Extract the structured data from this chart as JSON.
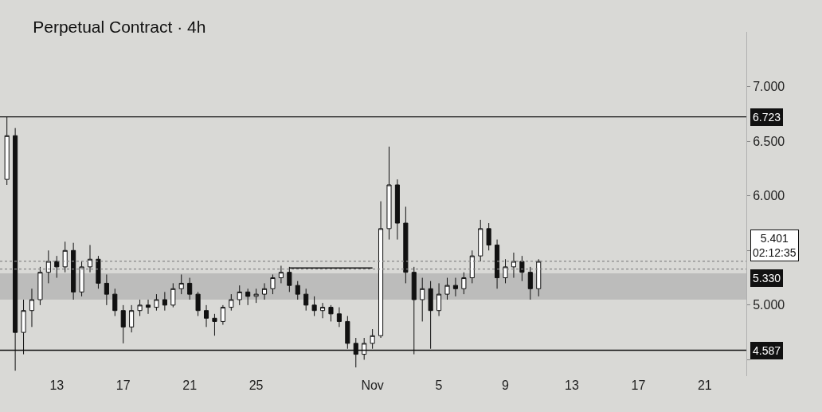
{
  "chart_data": {
    "type": "candlestick",
    "title": "Perpetual Contract · 4h",
    "x": [
      "--10-10T00:00",
      "--10-10T12:00",
      "--10-11T00:00",
      "--10-11T12:00",
      "--10-12T00:00",
      "--10-12T12:00",
      "--10-13T00:00",
      "--10-13T12:00",
      "--10-14T00:00",
      "--10-14T12:00",
      "--10-15T00:00",
      "--10-15T12:00",
      "--10-16T00:00",
      "--10-16T12:00",
      "--10-17T00:00",
      "--10-17T12:00",
      "--10-18T00:00",
      "--10-18T12:00",
      "--10-19T00:00",
      "--10-19T12:00",
      "--10-20T00:00",
      "--10-20T12:00",
      "--10-21T00:00",
      "--10-21T12:00",
      "--10-22T00:00",
      "--10-22T12:00",
      "--10-23T00:00",
      "--10-23T12:00",
      "--10-24T00:00",
      "--10-24T12:00",
      "--10-25T00:00",
      "--10-25T12:00",
      "--10-26T00:00",
      "--10-26T12:00",
      "--10-27T00:00",
      "--10-27T12:00",
      "--10-28T00:00",
      "--10-28T12:00",
      "--10-29T00:00",
      "--10-29T12:00",
      "--10-30T00:00",
      "--10-30T12:00",
      "--10-31T00:00",
      "--10-31T12:00",
      "--11-01T00:00",
      "--11-01T12:00",
      "--11-02T00:00",
      "--11-02T12:00",
      "--11-03T00:00",
      "--11-03T12:00",
      "--11-04T00:00",
      "--11-04T12:00",
      "--11-05T00:00",
      "--11-05T12:00",
      "--11-06T00:00",
      "--11-06T12:00",
      "--11-07T00:00",
      "--11-07T12:00",
      "--11-08T00:00",
      "--11-08T12:00",
      "--11-09T00:00",
      "--11-09T12:00",
      "--11-10T00:00",
      "--11-10T12:00",
      "--11-11T00:00"
    ],
    "ohlc": [
      [
        6.15,
        6.72,
        6.1,
        6.55
      ],
      [
        6.55,
        6.62,
        4.4,
        4.75
      ],
      [
        4.75,
        5.05,
        4.55,
        4.95
      ],
      [
        4.95,
        5.15,
        4.8,
        5.05
      ],
      [
        5.05,
        5.35,
        5.0,
        5.3
      ],
      [
        5.3,
        5.5,
        5.2,
        5.4
      ],
      [
        5.4,
        5.45,
        5.25,
        5.35
      ],
      [
        5.35,
        5.58,
        5.3,
        5.5
      ],
      [
        5.5,
        5.57,
        5.05,
        5.12
      ],
      [
        5.12,
        5.4,
        5.08,
        5.35
      ],
      [
        5.35,
        5.55,
        5.3,
        5.42
      ],
      [
        5.42,
        5.45,
        5.15,
        5.2
      ],
      [
        5.2,
        5.28,
        5.0,
        5.1
      ],
      [
        5.1,
        5.15,
        4.9,
        4.95
      ],
      [
        4.95,
        5.0,
        4.65,
        4.8
      ],
      [
        4.8,
        5.0,
        4.75,
        4.95
      ],
      [
        4.95,
        5.05,
        4.9,
        5.0
      ],
      [
        5.0,
        5.05,
        4.92,
        4.98
      ],
      [
        4.98,
        5.1,
        4.95,
        5.05
      ],
      [
        5.05,
        5.12,
        4.95,
        5.0
      ],
      [
        5.0,
        5.2,
        4.98,
        5.15
      ],
      [
        5.15,
        5.28,
        5.1,
        5.2
      ],
      [
        5.2,
        5.25,
        5.05,
        5.1
      ],
      [
        5.1,
        5.12,
        4.9,
        4.95
      ],
      [
        4.95,
        5.0,
        4.8,
        4.88
      ],
      [
        4.88,
        4.92,
        4.72,
        4.85
      ],
      [
        4.85,
        5.0,
        4.82,
        4.98
      ],
      [
        4.98,
        5.1,
        4.95,
        5.05
      ],
      [
        5.05,
        5.18,
        5.0,
        5.12
      ],
      [
        5.12,
        5.15,
        5.0,
        5.08
      ],
      [
        5.08,
        5.15,
        5.02,
        5.1
      ],
      [
        5.1,
        5.2,
        5.05,
        5.15
      ],
      [
        5.15,
        5.28,
        5.1,
        5.25
      ],
      [
        5.25,
        5.36,
        5.2,
        5.3
      ],
      [
        5.3,
        5.35,
        5.12,
        5.18
      ],
      [
        5.18,
        5.22,
        5.05,
        5.1
      ],
      [
        5.1,
        5.15,
        4.95,
        5.0
      ],
      [
        5.0,
        5.08,
        4.9,
        4.95
      ],
      [
        4.95,
        5.02,
        4.88,
        4.98
      ],
      [
        4.98,
        5.0,
        4.85,
        4.92
      ],
      [
        4.92,
        4.98,
        4.8,
        4.85
      ],
      [
        4.85,
        4.9,
        4.6,
        4.65
      ],
      [
        4.65,
        4.7,
        4.43,
        4.55
      ],
      [
        4.55,
        4.7,
        4.5,
        4.65
      ],
      [
        4.65,
        4.78,
        4.6,
        4.72
      ],
      [
        4.72,
        5.95,
        4.7,
        5.7
      ],
      [
        5.7,
        6.45,
        5.6,
        6.1
      ],
      [
        6.1,
        6.15,
        5.6,
        5.75
      ],
      [
        5.75,
        5.9,
        5.2,
        5.3
      ],
      [
        5.3,
        5.35,
        4.55,
        5.05
      ],
      [
        5.05,
        5.25,
        4.85,
        5.15
      ],
      [
        5.15,
        5.22,
        4.6,
        4.95
      ],
      [
        4.95,
        5.2,
        4.9,
        5.1
      ],
      [
        5.1,
        5.25,
        5.05,
        5.18
      ],
      [
        5.18,
        5.25,
        5.08,
        5.15
      ],
      [
        5.15,
        5.3,
        5.1,
        5.25
      ],
      [
        5.25,
        5.5,
        5.2,
        5.45
      ],
      [
        5.45,
        5.78,
        5.4,
        5.7
      ],
      [
        5.7,
        5.75,
        5.5,
        5.55
      ],
      [
        5.55,
        5.6,
        5.15,
        5.25
      ],
      [
        5.25,
        5.42,
        5.2,
        5.35
      ],
      [
        5.35,
        5.48,
        5.25,
        5.4
      ],
      [
        5.4,
        5.45,
        5.22,
        5.3
      ],
      [
        5.3,
        5.35,
        5.05,
        5.15
      ],
      [
        5.15,
        5.42,
        5.08,
        5.4
      ]
    ],
    "series": [
      {
        "type": "line",
        "color": "#111111",
        "x": [
          "--10-27T00:00",
          "--11-01T00:00"
        ],
        "values": [
          5.34,
          5.34
        ]
      }
    ],
    "xlim": [
      "--10-09T14:00",
      "--11-23T12:00"
    ],
    "xticks": [
      {
        "value": "--10-13",
        "label": "13"
      },
      {
        "value": "--10-17",
        "label": "17"
      },
      {
        "value": "--10-21",
        "label": "21"
      },
      {
        "value": "--10-25",
        "label": "25"
      },
      {
        "value": "--11-01",
        "label": "Nov"
      },
      {
        "value": "--11-05",
        "label": "5"
      },
      {
        "value": "--11-09",
        "label": "9"
      },
      {
        "value": "--11-13",
        "label": "13"
      },
      {
        "value": "--11-17",
        "label": "17"
      },
      {
        "value": "--11-21",
        "label": "21"
      }
    ],
    "ylim": [
      4.35,
      7.5
    ],
    "yticks": [
      {
        "value": 4.5,
        "label": null
      },
      {
        "value": 5,
        "label": "5.000"
      },
      {
        "value": 5.5,
        "label": null
      },
      {
        "value": 6,
        "label": "6.000"
      },
      {
        "value": 6.5,
        "label": "6.500"
      },
      {
        "value": 7,
        "label": "7.000"
      }
    ],
    "ref_lines": [
      {
        "axis": "y",
        "value": 6.723,
        "label": "6.723",
        "color": "#111111",
        "line_style": "solid"
      },
      {
        "axis": "y",
        "value": 4.587,
        "label": "4.587",
        "color": "#111111",
        "line_style": "solid"
      },
      {
        "axis": "y",
        "value": 5.401,
        "label": "5.401\n02:12:35",
        "color": "#888888",
        "line_style": "dotted"
      },
      {
        "axis": "y",
        "value": 5.33,
        "label": "5.330",
        "color": "#888888",
        "line_style": "dotted"
      }
    ],
    "bands": [
      {
        "axis": "y",
        "from": 5.05,
        "to": 5.29,
        "color": "#a8a8a8"
      }
    ],
    "grid": false
  }
}
